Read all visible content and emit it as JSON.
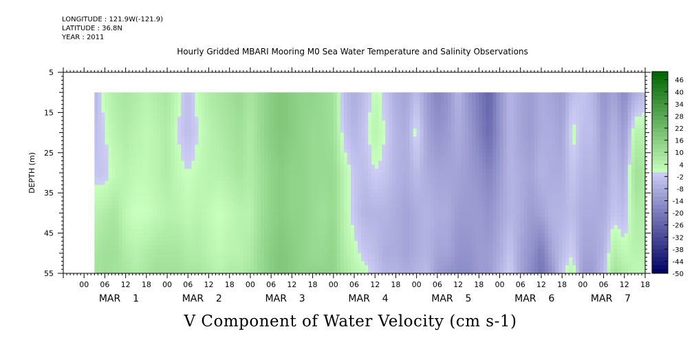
{
  "header": {
    "longitude": "LONGITUDE : 121.9W(-121.9)",
    "latitude": "LATITUDE : 36.8N",
    "year": "YEAR : 2011"
  },
  "chart_data": {
    "type": "heatmap",
    "title": "Hourly Gridded MBARI Mooring M0 Sea Water Temperature and Salinity Observations",
    "xlabel": "V Component of Water Velocity (cm s-1)",
    "ylabel": "DEPTH (m)",
    "x_range_hours": [
      -12,
      156
    ],
    "data_x_range_hours": [
      -3,
      156
    ],
    "y_range": [
      5,
      55
    ],
    "y_inverted": true,
    "data_depth_range": [
      10,
      55
    ],
    "y_ticks": [
      5,
      15,
      25,
      35,
      45,
      55
    ],
    "x_tick_labels": [
      "00",
      "06",
      "12",
      "18",
      "00",
      "06",
      "12",
      "18",
      "00",
      "06",
      "12",
      "18",
      "00",
      "06",
      "12",
      "18",
      "00",
      "06",
      "12",
      "18",
      "00",
      "06",
      "12",
      "18",
      "00",
      "06",
      "12",
      "18"
    ],
    "x_tick_hours": [
      -6,
      0,
      6,
      12,
      18,
      24,
      30,
      36,
      42,
      48,
      54,
      60,
      66,
      72,
      78,
      84,
      90,
      96,
      102,
      108,
      114,
      120,
      126,
      132,
      138,
      144,
      150,
      156
    ],
    "day_labels": [
      {
        "label": "MAR",
        "num": "1",
        "hour": 3
      },
      {
        "label": "MAR",
        "num": "2",
        "hour": 27
      },
      {
        "label": "MAR",
        "num": "3",
        "hour": 51
      },
      {
        "label": "MAR",
        "num": "4",
        "hour": 75
      },
      {
        "label": "MAR",
        "num": "5",
        "hour": 99
      },
      {
        "label": "MAR",
        "num": "6",
        "hour": 123
      },
      {
        "label": "MAR",
        "num": "7",
        "hour": 145
      }
    ],
    "colorbar": {
      "min": -50,
      "max": 50,
      "step": 2,
      "labels": [
        "46",
        "40",
        "34",
        "28",
        "22",
        "16",
        "10",
        "4",
        "-2",
        "-8",
        "-14",
        "-20",
        "-26",
        "-32",
        "-38",
        "-44",
        "-50"
      ],
      "label_values": [
        46,
        40,
        34,
        28,
        22,
        16,
        10,
        4,
        -2,
        -8,
        -14,
        -20,
        -26,
        -32,
        -38,
        -44,
        -50
      ]
    },
    "profile_hours": [
      -3,
      0,
      3,
      6,
      9,
      12,
      15,
      18,
      21,
      24,
      27,
      30,
      33,
      36,
      39,
      42,
      45,
      48,
      51,
      54,
      57,
      60,
      63,
      66,
      69,
      72,
      75,
      78,
      81,
      84,
      87,
      90,
      93,
      96,
      99,
      102,
      105,
      108,
      111,
      114,
      117,
      120,
      123,
      126,
      129,
      132,
      135,
      138,
      141,
      144,
      147,
      150,
      153,
      156
    ],
    "profile_depths": [
      10,
      20,
      30,
      40,
      50,
      55
    ],
    "profiles": [
      [
        -6,
        -4,
        -2,
        4,
        8,
        9
      ],
      [
        2,
        0,
        -2,
        6,
        10,
        10
      ],
      [
        6,
        4,
        2,
        8,
        10,
        9
      ],
      [
        8,
        6,
        4,
        2,
        6,
        8
      ],
      [
        6,
        4,
        2,
        0,
        4,
        6
      ],
      [
        4,
        2,
        2,
        0,
        6,
        8
      ],
      [
        6,
        4,
        4,
        2,
        8,
        10
      ],
      [
        8,
        6,
        6,
        4,
        8,
        10
      ],
      [
        2,
        0,
        2,
        4,
        8,
        10
      ],
      [
        -4,
        -4,
        0,
        2,
        6,
        8
      ],
      [
        2,
        0,
        2,
        4,
        6,
        8
      ],
      [
        6,
        4,
        4,
        2,
        4,
        6
      ],
      [
        8,
        6,
        4,
        0,
        2,
        4
      ],
      [
        10,
        8,
        6,
        2,
        4,
        6
      ],
      [
        12,
        10,
        8,
        4,
        4,
        6
      ],
      [
        8,
        6,
        6,
        4,
        6,
        8
      ],
      [
        12,
        12,
        10,
        10,
        12,
        12
      ],
      [
        16,
        16,
        14,
        14,
        16,
        16
      ],
      [
        18,
        18,
        16,
        16,
        18,
        18
      ],
      [
        16,
        16,
        14,
        14,
        16,
        16
      ],
      [
        14,
        14,
        14,
        14,
        14,
        14
      ],
      [
        14,
        12,
        12,
        12,
        12,
        14
      ],
      [
        12,
        12,
        12,
        10,
        12,
        14
      ],
      [
        10,
        10,
        12,
        12,
        14,
        14
      ],
      [
        -4,
        -2,
        4,
        4,
        6,
        8
      ],
      [
        -8,
        -6,
        -2,
        -2,
        2,
        4
      ],
      [
        -4,
        -2,
        -4,
        -6,
        -2,
        2
      ],
      [
        2,
        4,
        0,
        -6,
        -4,
        -2
      ],
      [
        -2,
        0,
        -2,
        -6,
        -8,
        -6
      ],
      [
        -8,
        -6,
        -6,
        -8,
        -8,
        -6
      ],
      [
        -10,
        -8,
        -8,
        -10,
        -10,
        -8
      ],
      [
        -4,
        2,
        -4,
        -8,
        -8,
        -6
      ],
      [
        -12,
        -10,
        -8,
        -6,
        -6,
        -4
      ],
      [
        -18,
        -14,
        -10,
        -8,
        -10,
        -12
      ],
      [
        -14,
        -12,
        -10,
        -8,
        -10,
        -14
      ],
      [
        -6,
        -8,
        -10,
        -12,
        -14,
        -16
      ],
      [
        -14,
        -12,
        -12,
        -12,
        -14,
        -16
      ],
      [
        -20,
        -18,
        -14,
        -12,
        -12,
        -12
      ],
      [
        -26,
        -24,
        -18,
        -14,
        -12,
        -12
      ],
      [
        -14,
        -14,
        -12,
        -10,
        -8,
        -6
      ],
      [
        -6,
        -6,
        -6,
        -6,
        -2,
        0
      ],
      [
        -10,
        -10,
        -8,
        -8,
        -10,
        -10
      ],
      [
        -12,
        -12,
        -10,
        -12,
        -14,
        -16
      ],
      [
        -8,
        -8,
        -6,
        -10,
        -20,
        -22
      ],
      [
        -10,
        -8,
        -8,
        -6,
        -10,
        -14
      ],
      [
        -12,
        -10,
        -8,
        -6,
        -4,
        -2
      ],
      [
        -4,
        2,
        -2,
        -4,
        0,
        4
      ],
      [
        -2,
        -4,
        -6,
        -8,
        -10,
        -12
      ],
      [
        -6,
        -4,
        -6,
        -8,
        -10,
        -12
      ],
      [
        -14,
        -12,
        -10,
        -8,
        -6,
        -4
      ],
      [
        -10,
        -6,
        -4,
        -2,
        6,
        10
      ],
      [
        -16,
        -12,
        -8,
        -4,
        2,
        6
      ],
      [
        -8,
        4,
        10,
        6,
        4,
        2
      ],
      [
        -4,
        4,
        8,
        6,
        4,
        2
      ]
    ]
  }
}
